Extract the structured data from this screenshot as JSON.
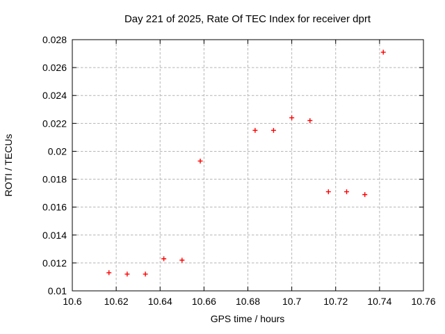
{
  "chart_data": {
    "type": "scatter",
    "title": "Day 221 of 2025, Rate Of TEC Index for receiver dprt",
    "xlabel": "GPS time / hours",
    "ylabel": "ROTI / TECUs",
    "xlim": [
      10.6,
      10.76
    ],
    "ylim": [
      0.01,
      0.028
    ],
    "xticks": {
      "values": [
        10.6,
        10.62,
        10.64,
        10.66,
        10.68,
        10.7,
        10.72,
        10.74,
        10.76
      ],
      "labels": [
        "10.6",
        "10.62",
        "10.64",
        "10.66",
        "10.68",
        "10.7",
        "10.72",
        "10.74",
        "10.76"
      ]
    },
    "yticks": {
      "values": [
        0.01,
        0.012,
        0.014,
        0.016,
        0.018,
        0.02,
        0.022,
        0.024,
        0.026,
        0.028
      ],
      "labels": [
        "0.01",
        "0.012",
        "0.014",
        "0.016",
        "0.018",
        "0.02",
        "0.022",
        "0.024",
        "0.026",
        "0.028"
      ]
    },
    "grid": true,
    "legend": "none",
    "marker": "plus",
    "series": [
      {
        "x": [
          10.6167,
          10.625,
          10.6333,
          10.6417,
          10.65,
          10.6583,
          10.6833,
          10.6917,
          10.7,
          10.7083,
          10.7167,
          10.725,
          10.7333,
          10.7417
        ],
        "y": [
          0.0113,
          0.0112,
          0.0112,
          0.0123,
          0.0122,
          0.0193,
          0.0215,
          0.0215,
          0.0224,
          0.0222,
          0.0171,
          0.0171,
          0.0169,
          0.0271
        ]
      }
    ]
  },
  "colors": {
    "background": "#ffffff",
    "axis": "#000000",
    "text": "#000000",
    "grid": "#b4b4b4",
    "marker": "#ff0000"
  }
}
